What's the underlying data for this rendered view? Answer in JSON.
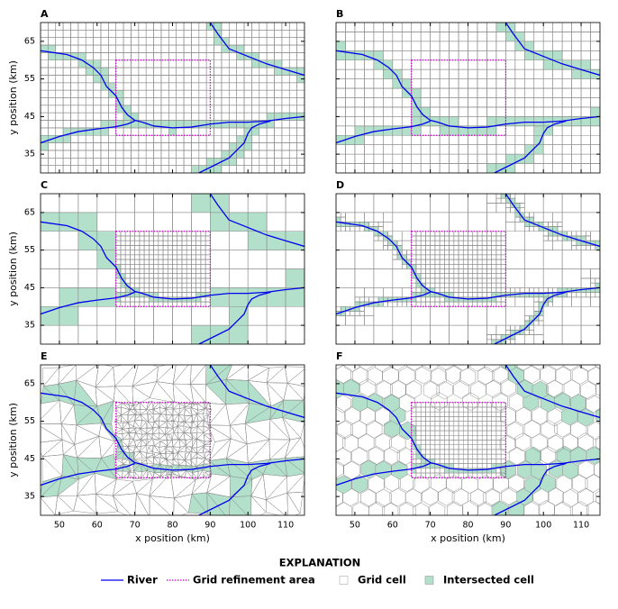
{
  "chart_data": [
    {
      "type": "map",
      "label": "A",
      "mesh": "structured",
      "cell_size": 2,
      "xlim": [
        45,
        115
      ],
      "ylim": [
        30,
        70
      ],
      "xticks": [
        50,
        60,
        70,
        80,
        90,
        100,
        110
      ],
      "yticks": [
        35,
        45,
        55,
        65
      ],
      "ylabel": "y position (km)"
    },
    {
      "type": "map",
      "label": "B",
      "mesh": "structured",
      "cell_size": 2.5,
      "xlim": [
        45,
        115
      ],
      "ylim": [
        30,
        70
      ],
      "xticks": [
        50,
        60,
        70,
        80,
        90,
        100,
        110
      ],
      "yticks": [
        35,
        45,
        55,
        65
      ]
    },
    {
      "type": "map",
      "label": "C",
      "mesh": "refined",
      "cell_size": 5,
      "refined_cell_size": 1.25,
      "xlim": [
        45,
        115
      ],
      "ylim": [
        30,
        70
      ],
      "xticks": [
        50,
        60,
        70,
        80,
        90,
        100,
        110
      ],
      "yticks": [
        35,
        45,
        55,
        65
      ],
      "ylabel": "y position (km)"
    },
    {
      "type": "map",
      "label": "D",
      "mesh": "quadtree",
      "cell_size": 5,
      "refined_cell_size": 1.25,
      "xlim": [
        45,
        115
      ],
      "ylim": [
        30,
        70
      ],
      "xticks": [
        50,
        60,
        70,
        80,
        90,
        100,
        110
      ],
      "yticks": [
        35,
        45,
        55,
        65
      ]
    },
    {
      "type": "map",
      "label": "E",
      "mesh": "triangular",
      "cell_size": 5,
      "refined_cell_size": 1.67,
      "xlim": [
        45,
        115
      ],
      "ylim": [
        30,
        70
      ],
      "xticks": [
        50,
        60,
        70,
        80,
        90,
        100,
        110
      ],
      "yticks": [
        35,
        45,
        55,
        65
      ],
      "xlabel": "x position (km)",
      "ylabel": "y position (km)"
    },
    {
      "type": "map",
      "label": "F",
      "mesh": "voronoi",
      "cell_size": 2.4,
      "refined_cell_size": 1.25,
      "xlim": [
        45,
        115
      ],
      "ylim": [
        30,
        70
      ],
      "xticks": [
        50,
        60,
        70,
        80,
        90,
        100,
        110
      ],
      "yticks": [
        35,
        45,
        55,
        65
      ],
      "xlabel": "x position (km)"
    }
  ],
  "rivers": [
    {
      "x": [
        45,
        52,
        56,
        59,
        61,
        62.5,
        64,
        65,
        66.5,
        68,
        70,
        72,
        75,
        80,
        85,
        90,
        95,
        100,
        105,
        110,
        115
      ],
      "y": [
        62.5,
        61.5,
        60,
        58,
        56,
        53,
        51.5,
        50.5,
        47.5,
        45.5,
        44,
        43.5,
        42.5,
        42,
        42.2,
        43,
        43.5,
        43.5,
        43.8,
        44.5,
        45
      ]
    },
    {
      "x": [
        45,
        50,
        55,
        60,
        65,
        68,
        70
      ],
      "y": [
        38,
        39.7,
        41,
        41.7,
        42.3,
        43,
        43.8
      ]
    },
    {
      "x": [
        90,
        92,
        95,
        100,
        105,
        110,
        115
      ],
      "y": [
        70,
        67,
        63,
        61,
        59,
        57.5,
        56
      ]
    },
    {
      "x": [
        87,
        90,
        95,
        97,
        99,
        100,
        101,
        103,
        106
      ],
      "y": [
        30,
        31.5,
        34,
        36,
        38,
        40.5,
        42,
        43,
        43.8
      ]
    }
  ],
  "refinement_area": {
    "x": [
      65,
      90
    ],
    "y": [
      40,
      60
    ]
  },
  "colors": {
    "river": "#0000ee",
    "refinement": "#cc00cc",
    "grid": "#8a8a8a",
    "intersected": "#b2e0cb"
  },
  "legend": {
    "title": "EXPLANATION",
    "entries": [
      "River",
      "Grid refinement area",
      "Grid cell",
      "Intersected cell"
    ]
  }
}
